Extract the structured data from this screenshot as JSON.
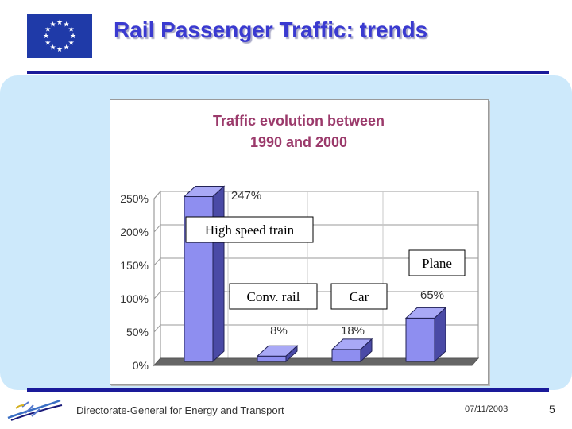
{
  "header": {
    "title": "Rail Passenger Traffic: trends"
  },
  "footer": {
    "organization": "Directorate-General for Energy and Transport",
    "date": "07/11/2003",
    "page_number": "5"
  },
  "colors": {
    "title": "#3a3ad0",
    "rules": "#1a1a9a",
    "panel": "#cde9fb",
    "bar_front": "#8e8ef0",
    "bar_side": "#4a4aa6",
    "chart_title": "#9b3a6b",
    "eu_blue": "#1f3aa8",
    "eu_star": "#ffffff"
  },
  "chart_data": {
    "type": "bar",
    "title_lines": [
      "Traffic evolution between",
      "1990 and 2000"
    ],
    "categories": [
      "High speed train",
      "Conv. rail",
      "Car",
      "Plane"
    ],
    "values": [
      247,
      8,
      18,
      65
    ],
    "value_labels": [
      "247%",
      "8%",
      "18%",
      "65%"
    ],
    "yticks": [
      0,
      50,
      100,
      150,
      200,
      250
    ],
    "ytick_labels": [
      "0%",
      "50%",
      "100%",
      "150%",
      "200%",
      "250%"
    ],
    "ylim": [
      0,
      250
    ],
    "unit": "%",
    "grid": true,
    "style": "3d"
  }
}
